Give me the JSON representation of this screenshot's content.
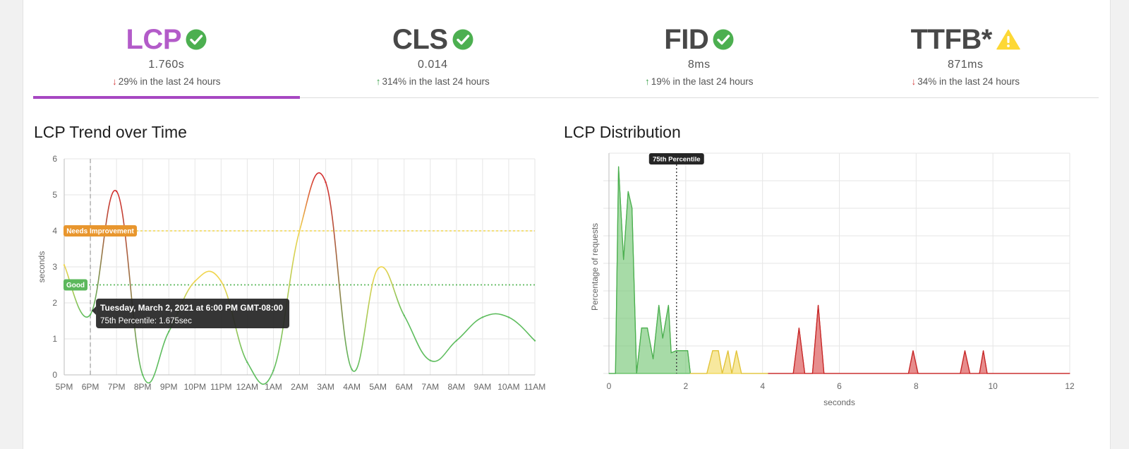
{
  "metrics": [
    {
      "name": "LCP",
      "value": "1.760s",
      "direction": "down",
      "change": "29% in the last 24 hours",
      "status": "good",
      "icon": "check-circle-icon"
    },
    {
      "name": "CLS",
      "value": "0.014",
      "direction": "up",
      "change": "314% in the last 24 hours",
      "status": "good",
      "icon": "check-circle-icon"
    },
    {
      "name": "FID",
      "value": "8ms",
      "direction": "up",
      "change": "19% in the last 24 hours",
      "status": "good",
      "icon": "check-circle-icon"
    },
    {
      "name": "TTFB*",
      "value": "871ms",
      "direction": "down",
      "change": "34% in the last 24 hours",
      "status": "warning",
      "icon": "warning-triangle-icon"
    }
  ],
  "colors": {
    "accent": "#a747c2",
    "lcp_title": "#b35bc9",
    "good": "#5ebd5e",
    "needs_improvement": "#f0d54e",
    "poor": "#d32f2f",
    "badge_orange": "#e8962e",
    "badge_green": "#5cb85c"
  },
  "trend_title": "LCP Trend over Time",
  "distribution_title": "LCP Distribution",
  "chart_data": [
    {
      "type": "line",
      "title": "LCP Trend over Time",
      "ylabel": "seconds",
      "ylim": [
        0,
        6
      ],
      "yticks": [
        "0",
        "1",
        "2",
        "3",
        "4",
        "5",
        "6"
      ],
      "categories": [
        "5PM",
        "6PM",
        "7PM",
        "8PM",
        "9PM",
        "10PM",
        "11PM",
        "12AM",
        "1AM",
        "2AM",
        "3AM",
        "4AM",
        "5AM",
        "6AM",
        "7AM",
        "8AM",
        "9AM",
        "10AM",
        "11AM"
      ],
      "series": [
        {
          "values": [
            3.05,
            1.675,
            5.1,
            0.0,
            1.2,
            2.6,
            2.6,
            0.35,
            0.12,
            4.0,
            5.35,
            0.15,
            2.95,
            1.65,
            0.4,
            0.95,
            1.6,
            1.6,
            0.95
          ]
        }
      ],
      "thresholds": [
        {
          "label": "Needs Improvement",
          "value": 4,
          "color": "#f0d54e"
        },
        {
          "label": "Good",
          "value": 2.5,
          "color": "#5cb85c"
        }
      ],
      "grid": true,
      "tooltip": {
        "title": "Tuesday, March 2, 2021 at 6:00 PM GMT-08:00",
        "body": "75th Percentile: 1.675sec",
        "category": "6PM"
      }
    },
    {
      "type": "area",
      "title": "LCP Distribution",
      "xlabel": "seconds",
      "ylabel": "Percentage of requests",
      "xlim": [
        0,
        12
      ],
      "xticks": [
        "0",
        "2",
        "4",
        "6",
        "8",
        "10",
        "12"
      ],
      "marker": {
        "label": "75th Percentile",
        "value": 1.76
      },
      "grid": true,
      "series": [
        {
          "color": "#5ebd5e",
          "points": [
            [
              0,
              0
            ],
            [
              0.1,
              0
            ],
            [
              0.17,
              0
            ],
            [
              0.25,
              1
            ],
            [
              0.38,
              0.55
            ],
            [
              0.5,
              0.88
            ],
            [
              0.6,
              0.8
            ],
            [
              0.72,
              0
            ],
            [
              0.85,
              0.22
            ],
            [
              1.0,
              0.22
            ],
            [
              1.15,
              0.07
            ],
            [
              1.3,
              0.33
            ],
            [
              1.4,
              0.17
            ],
            [
              1.55,
              0.33
            ],
            [
              1.62,
              0.1
            ],
            [
              1.75,
              0.11
            ],
            [
              2.05,
              0.11
            ],
            [
              2.12,
              0
            ]
          ]
        },
        {
          "color": "#f0d54e",
          "points": [
            [
              2.12,
              0
            ],
            [
              2.55,
              0
            ],
            [
              2.7,
              0.11
            ],
            [
              2.85,
              0.11
            ],
            [
              2.95,
              0
            ],
            [
              3.1,
              0.11
            ],
            [
              3.2,
              0
            ],
            [
              3.32,
              0.11
            ],
            [
              3.45,
              0
            ],
            [
              4.15,
              0
            ]
          ]
        },
        {
          "color": "#d32f2f",
          "points": [
            [
              4.15,
              0
            ],
            [
              4.8,
              0
            ],
            [
              4.95,
              0.22
            ],
            [
              5.1,
              0
            ],
            [
              5.3,
              0
            ],
            [
              5.45,
              0.33
            ],
            [
              5.6,
              0
            ],
            [
              7.8,
              0
            ],
            [
              7.92,
              0.11
            ],
            [
              8.05,
              0
            ],
            [
              9.15,
              0
            ],
            [
              9.27,
              0.11
            ],
            [
              9.4,
              0
            ],
            [
              9.65,
              0
            ],
            [
              9.75,
              0.11
            ],
            [
              9.85,
              0
            ],
            [
              12,
              0
            ]
          ]
        }
      ]
    }
  ]
}
